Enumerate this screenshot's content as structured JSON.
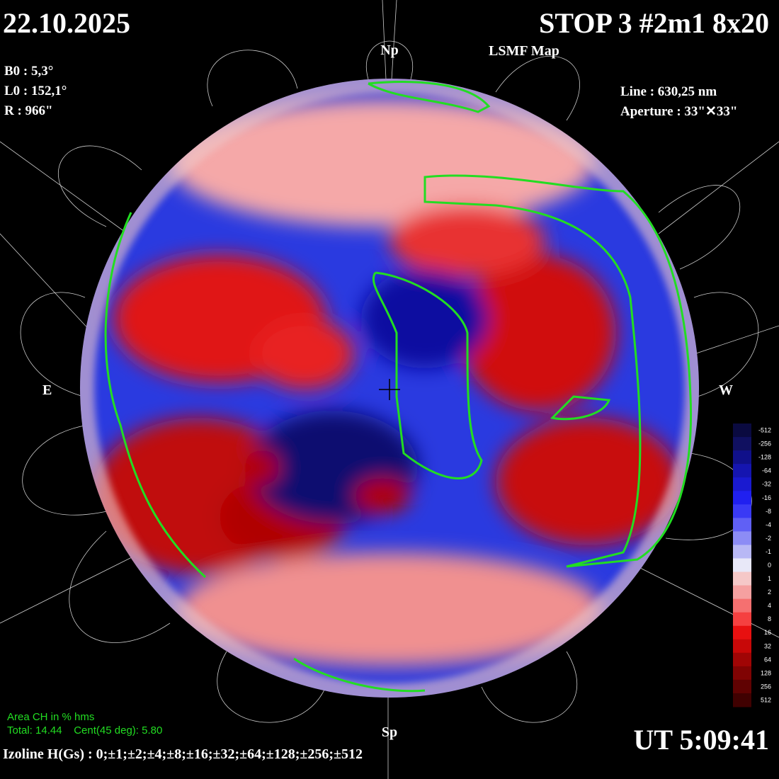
{
  "header": {
    "date": "22.10.2025",
    "title": "STOP 3 #2m1 8x20",
    "subtitle": "LSMF  Map"
  },
  "params": {
    "b0": "B0 : 5,3°",
    "l0": "L0 : 152,1°",
    "r": "R  : 966\"",
    "line": "Line :  630,25 nm",
    "aperture": "Aperture : 33\"✕33\""
  },
  "poles": {
    "north": "Np",
    "south": "Sp",
    "east": "E",
    "west": "W"
  },
  "area": {
    "title": "Area CH in % hms",
    "values": "Total: 14.44    Cent(45 deg): 5.80"
  },
  "izoline": "Izoline H(Gs) : 0;±1;±2;±4;±8;±16;±32;±64;±128;±256;±512",
  "time": "UT 5:09:41",
  "colorbar": {
    "ticks": [
      -512,
      -256,
      -128,
      -64,
      -32,
      -16,
      -8,
      -4,
      -2,
      -1,
      0,
      1,
      2,
      4,
      8,
      16,
      32,
      64,
      128,
      256,
      512
    ],
    "colors": [
      "#0a0a40",
      "#101060",
      "#10108a",
      "#1515b0",
      "#1a1ad0",
      "#2020f0",
      "#3a3af5",
      "#6060f5",
      "#8c8cf5",
      "#b8b8f5",
      "#e8e8f8",
      "#f5c8c8",
      "#f5a0a0",
      "#f57070",
      "#f54040",
      "#e81010",
      "#c80808",
      "#a00505",
      "#800303",
      "#600202",
      "#400101"
    ]
  }
}
